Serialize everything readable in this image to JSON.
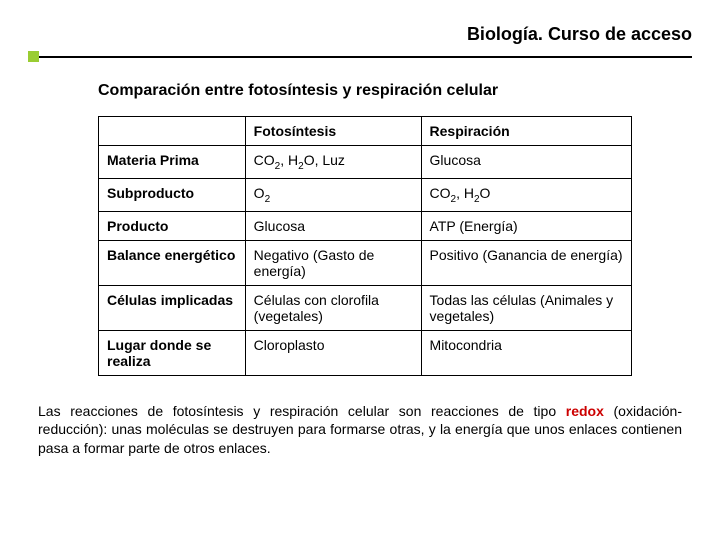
{
  "header": {
    "title": "Biología. Curso de acceso"
  },
  "subtitle": "Comparación entre fotosíntesis y respiración celular",
  "table": {
    "columns": [
      "",
      "Fotosíntesis",
      "Respiración"
    ],
    "rows": [
      {
        "label": "Materia Prima",
        "c1_html": "CO<span class='sub'>2</span>, H<span class='sub'>2</span>O, Luz",
        "c2_html": "Glucosa"
      },
      {
        "label": "Subproducto",
        "c1_html": "O<span class='sub'>2</span>",
        "c2_html": "CO<span class='sub'>2</span>, H<span class='sub'>2</span>O"
      },
      {
        "label": "Producto",
        "c1_html": "Glucosa",
        "c2_html": "ATP (Energía)"
      },
      {
        "label": "Balance energético",
        "c1_html": "Negativo (Gasto de energía)",
        "c2_html": "Positivo (Ganancia de energía)"
      },
      {
        "label": "Células implicadas",
        "c1_html": "Células con clorofila (vegetales)",
        "c2_html": "Todas las células (Animales y vegetales)"
      },
      {
        "label": "Lugar donde se realiza",
        "c1_html": "Cloroplasto",
        "c2_html": "Mitocondria"
      }
    ]
  },
  "footer": {
    "pre": "Las reacciones de fotosíntesis y respiración celular son reacciones de tipo ",
    "redox": "redox",
    "post": " (oxidación-reducción): unas moléculas se destruyen para formarse otras, y la energía que unos enlaces contienen pasa a formar parte de otros enlaces."
  },
  "colors": {
    "accent_square": "#9acd32",
    "redox": "#cc0000",
    "rule": "#000000"
  }
}
